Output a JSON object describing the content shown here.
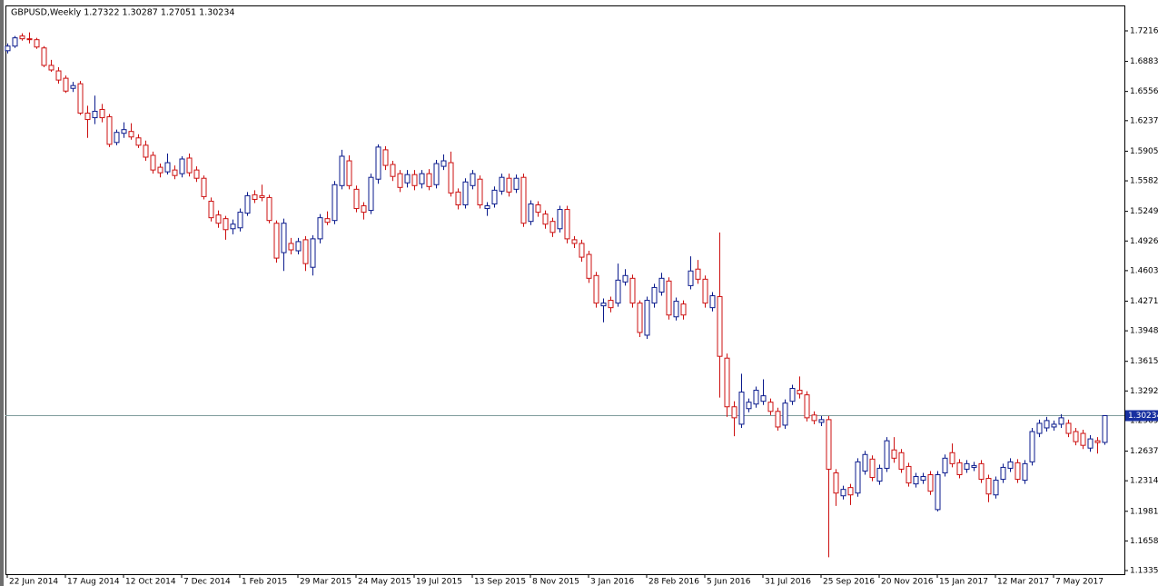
{
  "chart_data": {
    "type": "candlestick",
    "title": "GBPUSD,Weekly  1.27322 1.30287 1.27051 1.30234",
    "categories": [
      "22 Jun 2014",
      null,
      null,
      null,
      null,
      null,
      null,
      null,
      "17 Aug 2014",
      null,
      null,
      null,
      null,
      null,
      null,
      null,
      "12 Oct 2014",
      null,
      null,
      null,
      null,
      null,
      null,
      null,
      "7 Dec 2014",
      null,
      null,
      null,
      null,
      null,
      null,
      null,
      "1 Feb 2015",
      null,
      null,
      null,
      null,
      null,
      null,
      null,
      "29 Mar 2015",
      null,
      null,
      null,
      null,
      null,
      null,
      null,
      "24 May 2015",
      null,
      null,
      null,
      null,
      null,
      null,
      null,
      "19 Jul 2015",
      null,
      null,
      null,
      null,
      null,
      null,
      null,
      "13 Sep 2015",
      null,
      null,
      null,
      null,
      null,
      null,
      null,
      "8 Nov 2015",
      null,
      null,
      null,
      null,
      null,
      null,
      null,
      "3 Jan 2016",
      null,
      null,
      null,
      null,
      null,
      null,
      null,
      "28 Feb 2016",
      null,
      null,
      null,
      null,
      null,
      null,
      null,
      "5 Jun 2016",
      null,
      null,
      null,
      null,
      null,
      null,
      null,
      "31 Jul 2016",
      null,
      null,
      null,
      null,
      null,
      null,
      null,
      "25 Sep 2016",
      null,
      null,
      null,
      null,
      null,
      null,
      null,
      "20 Nov 2016",
      null,
      null,
      null,
      null,
      null,
      null,
      null,
      "15 Jan 2017",
      null,
      null,
      null,
      null,
      null,
      null,
      null,
      "12 Mar 2017",
      null,
      null,
      null,
      null,
      null,
      null,
      null,
      "7 May 2017",
      null,
      null,
      null,
      null,
      null,
      null,
      null
    ],
    "open": [
      1.7,
      1.705,
      1.716,
      1.713,
      1.712,
      1.703,
      1.684,
      1.678,
      1.67,
      1.659,
      1.664,
      1.632,
      1.627,
      1.636,
      1.628,
      1.6,
      1.61,
      1.612,
      1.605,
      1.597,
      1.586,
      1.573,
      1.568,
      1.57,
      1.566,
      1.583,
      1.57,
      1.561,
      1.536,
      1.521,
      1.517,
      1.506,
      1.507,
      1.523,
      1.543,
      1.542,
      1.54,
      1.512,
      1.48,
      1.49,
      1.482,
      1.494,
      1.464,
      1.495,
      1.517,
      1.515,
      1.553,
      1.58,
      1.549,
      1.531,
      1.526,
      1.56,
      1.592,
      1.576,
      1.566,
      1.556,
      1.565,
      1.555,
      1.566,
      1.554,
      1.574,
      1.578,
      1.546,
      1.532,
      1.553,
      1.56,
      1.528,
      1.533,
      1.547,
      1.561,
      1.549,
      1.562,
      1.514,
      1.532,
      1.522,
      1.514,
      1.506,
      1.527,
      1.494,
      1.49,
      1.478,
      1.455,
      1.422,
      1.428,
      1.425,
      1.448,
      1.452,
      1.425,
      1.39,
      1.425,
      1.437,
      1.449,
      1.41,
      1.424,
      1.444,
      1.462,
      1.451,
      1.42,
      1.432,
      1.365,
      1.312,
      1.293,
      1.31,
      1.315,
      1.318,
      1.317,
      1.307,
      1.292,
      1.318,
      1.33,
      1.325,
      1.303,
      1.295,
      1.298,
      1.24,
      1.215,
      1.224,
      1.218,
      1.242,
      1.255,
      1.231,
      1.245,
      1.265,
      1.262,
      1.247,
      1.228,
      1.232,
      1.238,
      1.2,
      1.24,
      1.262,
      1.251,
      1.244,
      1.246,
      1.25,
      1.234,
      1.216,
      1.233,
      1.245,
      1.251,
      1.232,
      1.252,
      1.283,
      1.289,
      1.29,
      1.293,
      1.294,
      1.285,
      1.283,
      1.267,
      1.275,
      1.27322
    ],
    "high": [
      1.708,
      1.716,
      1.719,
      1.72,
      1.714,
      1.705,
      1.69,
      1.682,
      1.673,
      1.666,
      1.667,
      1.64,
      1.651,
      1.642,
      1.631,
      1.614,
      1.622,
      1.621,
      1.609,
      1.602,
      1.59,
      1.577,
      1.588,
      1.575,
      1.585,
      1.588,
      1.574,
      1.564,
      1.54,
      1.526,
      1.52,
      1.516,
      1.528,
      1.546,
      1.548,
      1.554,
      1.543,
      1.515,
      1.517,
      1.496,
      1.496,
      1.498,
      1.499,
      1.522,
      1.525,
      1.558,
      1.592,
      1.586,
      1.553,
      1.535,
      1.566,
      1.598,
      1.596,
      1.58,
      1.57,
      1.57,
      1.57,
      1.57,
      1.571,
      1.581,
      1.587,
      1.59,
      1.55,
      1.561,
      1.57,
      1.564,
      1.535,
      1.552,
      1.566,
      1.566,
      1.565,
      1.566,
      1.537,
      1.536,
      1.526,
      1.518,
      1.531,
      1.531,
      1.498,
      1.494,
      1.482,
      1.459,
      1.43,
      1.432,
      1.468,
      1.462,
      1.456,
      1.428,
      1.432,
      1.446,
      1.458,
      1.453,
      1.431,
      1.428,
      1.476,
      1.472,
      1.455,
      1.437,
      1.502,
      1.37,
      1.318,
      1.348,
      1.321,
      1.334,
      1.342,
      1.321,
      1.311,
      1.32,
      1.336,
      1.345,
      1.329,
      1.307,
      1.302,
      1.302,
      1.244,
      1.226,
      1.228,
      1.256,
      1.264,
      1.259,
      1.249,
      1.279,
      1.279,
      1.266,
      1.251,
      1.24,
      1.24,
      1.242,
      1.242,
      1.26,
      1.272,
      1.255,
      1.254,
      1.252,
      1.254,
      1.238,
      1.236,
      1.25,
      1.256,
      1.255,
      1.254,
      1.289,
      1.298,
      1.301,
      1.297,
      1.304,
      1.298,
      1.289,
      1.287,
      1.281,
      1.279,
      1.30287
    ],
    "low": [
      1.697,
      1.703,
      1.711,
      1.708,
      1.702,
      1.682,
      1.677,
      1.664,
      1.654,
      1.655,
      1.63,
      1.605,
      1.62,
      1.622,
      1.595,
      1.597,
      1.605,
      1.603,
      1.594,
      1.58,
      1.566,
      1.562,
      1.565,
      1.56,
      1.562,
      1.563,
      1.557,
      1.538,
      1.514,
      1.507,
      1.494,
      1.5,
      1.503,
      1.52,
      1.534,
      1.536,
      1.512,
      1.469,
      1.46,
      1.478,
      1.478,
      1.46,
      1.455,
      1.49,
      1.51,
      1.511,
      1.549,
      1.549,
      1.524,
      1.516,
      1.522,
      1.555,
      1.57,
      1.558,
      1.546,
      1.551,
      1.548,
      1.55,
      1.548,
      1.55,
      1.57,
      1.541,
      1.527,
      1.528,
      1.549,
      1.528,
      1.52,
      1.529,
      1.543,
      1.541,
      1.545,
      1.508,
      1.51,
      1.519,
      1.506,
      1.497,
      1.502,
      1.49,
      1.485,
      1.47,
      1.447,
      1.42,
      1.404,
      1.415,
      1.421,
      1.444,
      1.42,
      1.388,
      1.386,
      1.42,
      1.433,
      1.407,
      1.406,
      1.407,
      1.44,
      1.446,
      1.42,
      1.416,
      1.322,
      1.301,
      1.28,
      1.289,
      1.306,
      1.311,
      1.314,
      1.303,
      1.286,
      1.288,
      1.314,
      1.321,
      1.296,
      1.293,
      1.291,
      1.148,
      1.204,
      1.211,
      1.205,
      1.214,
      1.238,
      1.231,
      1.227,
      1.241,
      1.251,
      1.24,
      1.225,
      1.224,
      1.228,
      1.216,
      1.198,
      1.236,
      1.246,
      1.234,
      1.24,
      1.242,
      1.229,
      1.208,
      1.212,
      1.229,
      1.241,
      1.229,
      1.228,
      1.248,
      1.279,
      1.285,
      1.286,
      1.289,
      1.279,
      1.27,
      1.266,
      1.263,
      1.261,
      1.27051
    ],
    "close": [
      1.705,
      1.714,
      1.713,
      1.712,
      1.704,
      1.684,
      1.679,
      1.668,
      1.656,
      1.662,
      1.632,
      1.625,
      1.634,
      1.627,
      1.598,
      1.611,
      1.614,
      1.606,
      1.597,
      1.584,
      1.57,
      1.567,
      1.578,
      1.564,
      1.582,
      1.567,
      1.561,
      1.541,
      1.518,
      1.512,
      1.505,
      1.511,
      1.524,
      1.542,
      1.538,
      1.54,
      1.515,
      1.474,
      1.512,
      1.483,
      1.492,
      1.468,
      1.495,
      1.518,
      1.513,
      1.554,
      1.585,
      1.553,
      1.528,
      1.524,
      1.562,
      1.595,
      1.575,
      1.563,
      1.551,
      1.565,
      1.553,
      1.566,
      1.552,
      1.577,
      1.58,
      1.545,
      1.532,
      1.557,
      1.566,
      1.532,
      1.531,
      1.548,
      1.562,
      1.546,
      1.561,
      1.512,
      1.533,
      1.524,
      1.511,
      1.502,
      1.527,
      1.495,
      1.49,
      1.475,
      1.452,
      1.425,
      1.425,
      1.42,
      1.45,
      1.455,
      1.425,
      1.393,
      1.428,
      1.442,
      1.452,
      1.412,
      1.427,
      1.412,
      1.46,
      1.451,
      1.425,
      1.433,
      1.367,
      1.312,
      1.3,
      1.328,
      1.317,
      1.33,
      1.324,
      1.307,
      1.29,
      1.316,
      1.332,
      1.326,
      1.3,
      1.297,
      1.298,
      1.244,
      1.218,
      1.222,
      1.216,
      1.252,
      1.26,
      1.235,
      1.245,
      1.275,
      1.256,
      1.244,
      1.229,
      1.236,
      1.236,
      1.22,
      1.238,
      1.256,
      1.25,
      1.238,
      1.25,
      1.248,
      1.233,
      1.217,
      1.232,
      1.246,
      1.252,
      1.233,
      1.25,
      1.285,
      1.294,
      1.297,
      1.293,
      1.3,
      1.283,
      1.274,
      1.27,
      1.277,
      1.273,
      1.30234
    ],
    "up_color": "#0a1a8c",
    "down_color": "#cc1010",
    "price_line": 1.30234,
    "price_line_color": "#7f9c9c",
    "ylim": [
      1.1296,
      1.7493
    ],
    "yticks": [
      {
        "value": 1.7216,
        "label": "1.72160"
      },
      1.68835,
      {
        "value": 1.6556,
        "label": "1.65560"
      },
      1.62375,
      {
        "value": 1.5905,
        "label": "1.59050"
      },
      {
        "value": 1.5582,
        "label": "1.55820"
      },
      1.52495,
      1.49265,
      1.46035,
      {
        "value": 1.4271,
        "label": "1.42710"
      },
      {
        "value": 1.3948,
        "label": "1.39480"
      },
      1.36155,
      1.32925,
      1.29695,
      {
        "value": 1.2637,
        "label": "1.26370"
      },
      {
        "value": 1.2314,
        "label": "1.23140"
      },
      1.19815,
      1.16585,
      1.13355
    ]
  }
}
